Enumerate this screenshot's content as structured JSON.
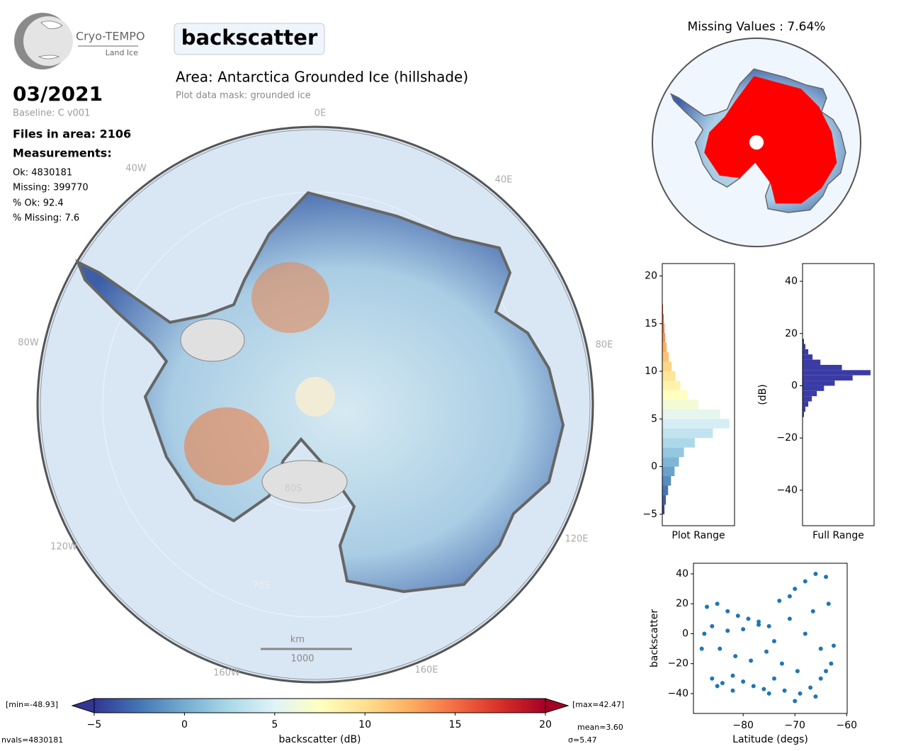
{
  "header": {
    "logo_title": "Cryo-TEMPO",
    "logo_subtitle": "Land Ice",
    "parameter": "backscatter",
    "date": "03/2021",
    "baseline": "Baseline: C v001",
    "files": "Files in area: 2106",
    "measurements_heading": "Measurements:",
    "stats": [
      "Ok: 4830181",
      "Missing: 399770",
      "% Ok: 92.4",
      "% Missing: 7.6"
    ],
    "area": "Area: Antarctica Grounded Ice (hillshade)",
    "mask": "Plot data mask: grounded ice"
  },
  "map": {
    "lon_labels": [
      "0E",
      "40E",
      "80E",
      "120E",
      "160E",
      "160W",
      "120W",
      "80W",
      "40W"
    ],
    "lat_labels": [
      "80S",
      "70S"
    ],
    "scale_unit": "km",
    "scale_length": "1000"
  },
  "missing_map": {
    "title": "Missing Values : 7.64%"
  },
  "chart_data": [
    {
      "type": "hbar-histogram",
      "xlabel": "Plot Range",
      "bins": [
        -5,
        -4,
        -3,
        -2,
        -1,
        0,
        1,
        2,
        3,
        4,
        5,
        6,
        7,
        8,
        9,
        10,
        11,
        12,
        13,
        14,
        15,
        16,
        17
      ],
      "values": [
        3,
        5,
        8,
        12,
        17,
        23,
        30,
        45,
        70,
        93,
        80,
        50,
        35,
        25,
        18,
        13,
        9,
        6,
        4,
        3,
        2,
        1
      ],
      "xlim": [
        0,
        100
      ],
      "ylim": [
        -6.2,
        21.3
      ],
      "yticks": [
        {
          "value": -5,
          "label": "−5"
        },
        0,
        5,
        10,
        15,
        20
      ],
      "colormap": [
        "#313695",
        "#4575b4",
        "#74add1",
        "#abd9e9",
        "#e0f3f8",
        "#ffffbf",
        "#fee090",
        "#fdae61",
        "#f46d43",
        "#d73027",
        "#a50026"
      ],
      "clim": [
        -5,
        20
      ]
    },
    {
      "type": "hbar-histogram",
      "xlabel": "Full Range",
      "ylabel": "(dB)",
      "bins": [
        -12,
        -10,
        -8,
        -6,
        -4,
        -2,
        0,
        2,
        4,
        6,
        8,
        10,
        12,
        14,
        16,
        18
      ],
      "values": [
        2,
        4,
        8,
        13,
        20,
        30,
        45,
        70,
        95,
        55,
        25,
        14,
        8,
        4,
        2
      ],
      "color": "#3b3ba6",
      "xlim": [
        0,
        100
      ],
      "ylim": [
        -53.6,
        46.8
      ],
      "yticks": [
        {
          "value": -40,
          "label": "−40"
        },
        {
          "value": -20,
          "label": "−20"
        },
        0,
        20,
        40
      ]
    },
    {
      "type": "scatter",
      "xlabel": "Latitude (degs)",
      "ylabel": "backscatter",
      "color": "#1f77b4",
      "x": [
        -87,
        -86,
        -85,
        -84,
        -83,
        -82,
        -81,
        -80,
        -79,
        -78,
        -77,
        -76,
        -75,
        -74,
        -73,
        -72,
        -71,
        -70,
        -69,
        -68,
        -67,
        -66,
        -65,
        -64,
        -63,
        -87.5,
        -86,
        -84.5,
        -83,
        -81.5,
        -80,
        -78.5,
        -77,
        -75.5,
        -74,
        -72.5,
        -71,
        -69.5,
        -68,
        -66.5,
        -65,
        -63.5,
        -62.5,
        -66,
        -70,
        -75,
        -82,
        -85,
        -88,
        -64
      ],
      "values": [
        18,
        -30,
        20,
        -33,
        15,
        -28,
        12,
        -32,
        10,
        -35,
        8,
        -37,
        5,
        -30,
        22,
        -38,
        25,
        30,
        -40,
        35,
        -36,
        40,
        -30,
        38,
        -20,
        0,
        5,
        -10,
        2,
        -15,
        3,
        -18,
        6,
        -12,
        -5,
        -20,
        10,
        -25,
        0,
        15,
        -10,
        20,
        -8,
        -42,
        -45,
        -40,
        -38,
        -35,
        -10,
        -25
      ],
      "xlim": [
        -89.6,
        -59.9
      ],
      "xticks": [
        {
          "value": -80,
          "label": "−80"
        },
        {
          "value": -70,
          "label": "−70"
        },
        {
          "value": -60,
          "label": "−60"
        }
      ],
      "ylim": [
        -53.3,
        47.1
      ],
      "yticks": [
        {
          "value": -40,
          "label": "−40"
        },
        {
          "value": -20,
          "label": "−20"
        },
        0,
        20,
        40
      ]
    },
    {
      "type": "colorbar",
      "xlabel": "backscatter (dB)",
      "xlim": [
        -5,
        20
      ],
      "xticks": [
        {
          "value": -5,
          "label": "−5"
        },
        0,
        5,
        10,
        15,
        20
      ],
      "colormap": [
        "#313695",
        "#4575b4",
        "#74add1",
        "#abd9e9",
        "#e0f3f8",
        "#ffffbf",
        "#fee090",
        "#fdae61",
        "#f46d43",
        "#d73027",
        "#a50026"
      ],
      "min_label": "[min=-48.93]",
      "max_label": "[max=42.47]",
      "mean_label": "mean=3.60",
      "sigma_label": "σ=5.47",
      "nvals_label": "nvals=4830181"
    }
  ]
}
